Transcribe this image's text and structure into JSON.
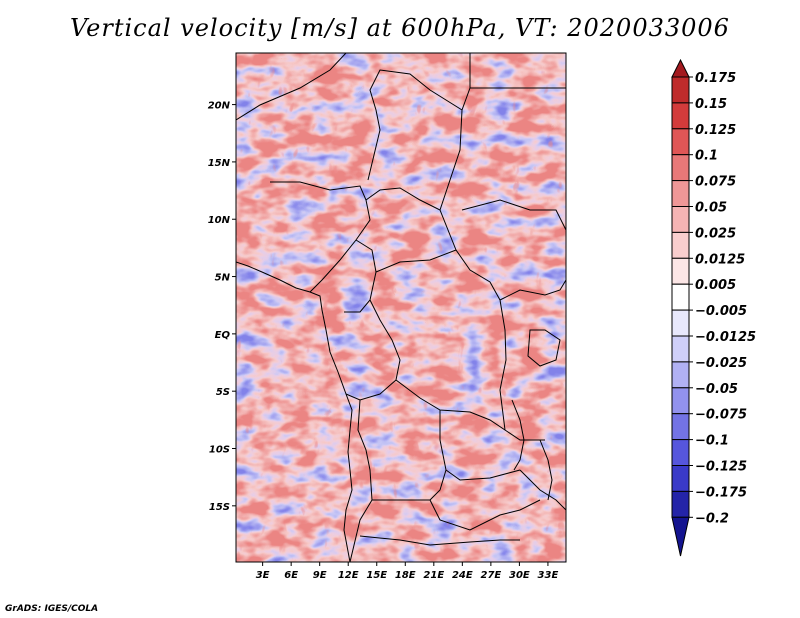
{
  "chart_data": {
    "type": "heatmap",
    "title": "Vertical velocity [m/s] at 600hPa, VT: 2020033006",
    "variable": "Vertical velocity",
    "units": "m/s",
    "level": "600hPa",
    "valid_time": "2020033006",
    "xlabel": "",
    "ylabel": "",
    "x_tick_labels": [
      "3E",
      "6E",
      "9E",
      "12E",
      "15E",
      "18E",
      "21E",
      "24E",
      "27E",
      "30E",
      "33E"
    ],
    "x_tick_values": [
      3,
      6,
      9,
      12,
      15,
      18,
      21,
      24,
      27,
      30,
      33
    ],
    "y_tick_labels": [
      "20N",
      "15N",
      "10N",
      "5N",
      "EQ",
      "5S",
      "10S",
      "15S"
    ],
    "y_tick_values": [
      20,
      15,
      10,
      5,
      0,
      -5,
      -10,
      -15
    ],
    "xlim": [
      0.2,
      34.9
    ],
    "ylim": [
      -19.9,
      24.5
    ],
    "colorbar": {
      "labels": [
        "0.175",
        "0.15",
        "0.125",
        "0.1",
        "0.075",
        "0.05",
        "0.025",
        "0.0125",
        "0.005",
        "−0.005",
        "−0.0125",
        "−0.025",
        "−0.05",
        "−0.075",
        "−0.1",
        "−0.125",
        "−0.175",
        "−0.2"
      ],
      "colors": [
        "#a31a1f",
        "#bf2b2b",
        "#d33b3b",
        "#e05656",
        "#e87878",
        "#ef9797",
        "#f5b4b4",
        "#f9cece",
        "#fce6e6",
        "#ffffff",
        "#e8e8fc",
        "#cfcff9",
        "#b1b1f4",
        "#9292ee",
        "#7373e5",
        "#5656dc",
        "#3a3ac8",
        "#2424a8",
        "#141490"
      ]
    }
  },
  "credit": "GrADS: IGES/COLA"
}
